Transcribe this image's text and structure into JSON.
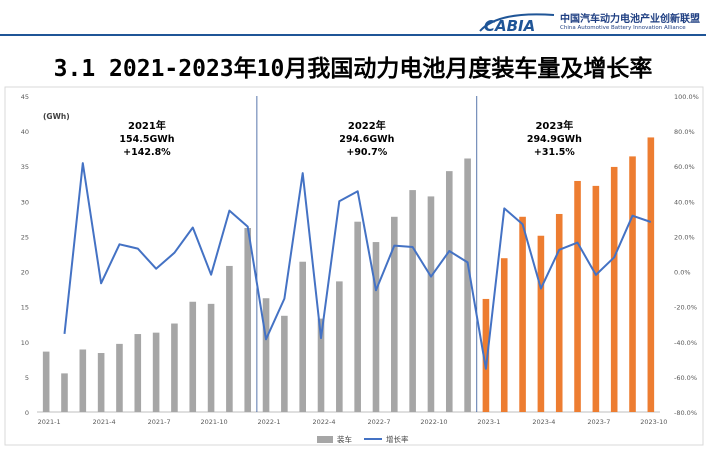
{
  "header": {
    "logo_text": "CABIA",
    "org_name_cn": "中国汽车动力电池产业创新联盟",
    "org_name_en": "China Automotive Battery Innovation Alliance"
  },
  "title": "3.1 2021-2023年10月我国动力电池月度装车量及增长率",
  "chart_data": {
    "type": "bar",
    "unit_label": "(GWh)",
    "y_left": {
      "min": 0,
      "max": 45,
      "ticks": [
        "0",
        "5",
        "10",
        "15",
        "20",
        "25",
        "30",
        "35",
        "40",
        "45"
      ]
    },
    "y_right": {
      "min": -80,
      "max": 100,
      "ticks": [
        "-80.0%",
        "-60.0%",
        "-40.0%",
        "-20.0%",
        "0.0%",
        "20.0%",
        "40.0%",
        "60.0%",
        "80.0%",
        "100.0%"
      ]
    },
    "x_tick_labels": [
      {
        "index": 0,
        "label": "2021-1"
      },
      {
        "index": 3,
        "label": "2021-4"
      },
      {
        "index": 6,
        "label": "2021-7"
      },
      {
        "index": 9,
        "label": "2021-10"
      },
      {
        "index": 12,
        "label": "2022-1"
      },
      {
        "index": 15,
        "label": "2022-4"
      },
      {
        "index": 18,
        "label": "2022-7"
      },
      {
        "index": 21,
        "label": "2022-10"
      },
      {
        "index": 24,
        "label": "2023-1"
      },
      {
        "index": 27,
        "label": "2023-4"
      },
      {
        "index": 30,
        "label": "2023-7"
      },
      {
        "index": 33,
        "label": "2023-10"
      }
    ],
    "months": [
      "2021-1",
      "2021-2",
      "2021-3",
      "2021-4",
      "2021-5",
      "2021-6",
      "2021-7",
      "2021-8",
      "2021-9",
      "2021-10",
      "2021-11",
      "2021-12",
      "2022-1",
      "2022-2",
      "2022-3",
      "2022-4",
      "2022-5",
      "2022-6",
      "2022-7",
      "2022-8",
      "2022-9",
      "2022-10",
      "2022-11",
      "2022-12",
      "2023-1",
      "2023-2",
      "2023-3",
      "2023-4",
      "2023-5",
      "2023-6",
      "2023-7",
      "2023-8",
      "2023-9",
      "2023-10"
    ],
    "series": [
      {
        "name": "装车",
        "axis": "left",
        "kind": "bar",
        "values": [
          8.6,
          5.5,
          8.9,
          8.4,
          9.7,
          11.1,
          11.3,
          12.6,
          15.7,
          15.4,
          20.8,
          26.2,
          16.2,
          13.7,
          21.4,
          13.3,
          18.6,
          27.1,
          24.2,
          27.8,
          31.6,
          30.7,
          34.3,
          36.1,
          16.1,
          21.9,
          27.8,
          25.1,
          28.2,
          32.9,
          32.2,
          34.9,
          36.4,
          39.1
        ],
        "colors": {
          "2021": "#a6a6a6",
          "2022": "#a6a6a6",
          "2023": "#ed7d31"
        }
      },
      {
        "name": "增长率",
        "axis": "right",
        "kind": "line",
        "color": "#4472c4",
        "values": [
          -35.5,
          61.8,
          -6.7,
          15.5,
          13.1,
          1.6,
          10.7,
          25.1,
          -1.8,
          34.7,
          25.6,
          -38.6,
          -15.4,
          56.1,
          -37.9,
          40.1,
          45.7,
          -10.7,
          14.8,
          14.0,
          -2.9,
          11.7,
          5.2,
          -55.4,
          36.0,
          27.0,
          -9.7,
          12.4,
          16.5,
          -1.9,
          8.1,
          31.8,
          28.2
        ]
      }
    ],
    "annotations": [
      {
        "year": "2021年",
        "total": "154.5GWh",
        "growth": "+142.8%"
      },
      {
        "year": "2022年",
        "total": "294.6GWh",
        "growth": "+90.7%"
      },
      {
        "year": "2023年",
        "total": "294.9GWh",
        "growth": "+31.5%"
      }
    ],
    "legend": {
      "position": "bottom",
      "items": [
        "装车",
        "增长率"
      ]
    }
  }
}
